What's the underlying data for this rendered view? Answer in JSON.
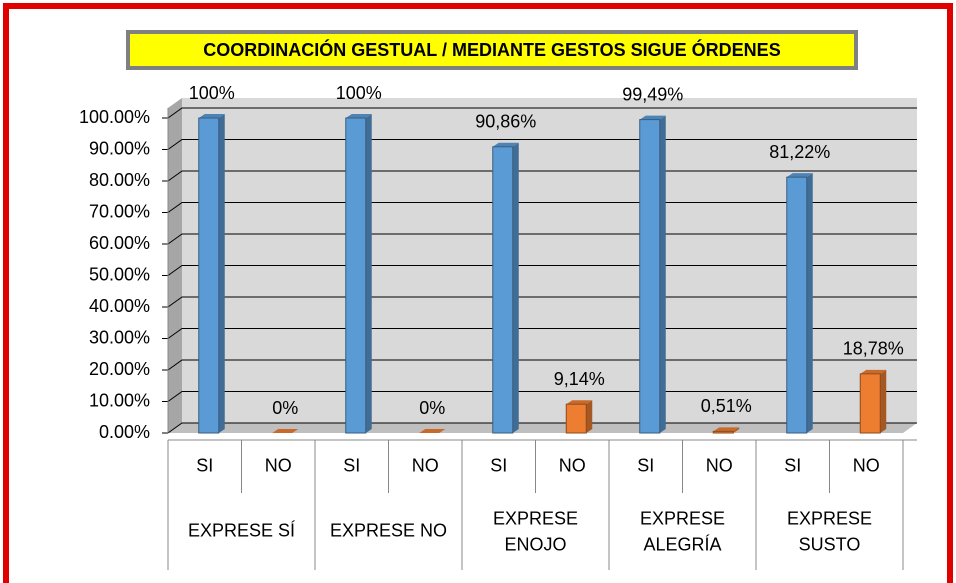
{
  "chart_data": {
    "type": "bar",
    "title": "COORDINACIÓN GESTUAL / MEDIANTE GESTOS SIGUE ÓRDENES",
    "categories": [
      "SI",
      "NO",
      "SI",
      "NO",
      "SI",
      "NO",
      "SI",
      "NO",
      "SI",
      "NO"
    ],
    "groups": [
      "EXPRESE SÍ",
      "EXPRESE NO",
      "EXPRESE ENOJO",
      "EXPRESE ALEGRÍA",
      "EXPRESE SUSTO"
    ],
    "values": [
      100,
      0,
      100,
      0,
      90.86,
      9.14,
      99.49,
      0.51,
      81.22,
      18.78
    ],
    "value_labels": [
      "100%",
      "0%",
      "100%",
      "0%",
      "90,86%",
      "9,14%",
      "99,49%",
      "0,51%",
      "81,22%",
      "18,78%"
    ],
    "colors": [
      "#5b9bd5",
      "#ed7d31",
      "#5b9bd5",
      "#ed7d31",
      "#5b9bd5",
      "#ed7d31",
      "#5b9bd5",
      "#ed7d31",
      "#5b9bd5",
      "#ed7d31"
    ],
    "ylim": [
      0,
      100
    ],
    "yticks": [
      {
        "value": 0,
        "label": "0.00%"
      },
      {
        "value": 10,
        "label": "10.00%"
      },
      {
        "value": 20,
        "label": "20.00%"
      },
      {
        "value": 30,
        "label": "30.00%"
      },
      {
        "value": 40,
        "label": "40.00%"
      },
      {
        "value": 50,
        "label": "50.00%"
      },
      {
        "value": 60,
        "label": "60.00%"
      },
      {
        "value": 70,
        "label": "70.00%"
      },
      {
        "value": 80,
        "label": "80.00%"
      },
      {
        "value": 90,
        "label": "90.00%"
      },
      {
        "value": 100,
        "label": "100.00%"
      }
    ],
    "grid": true
  }
}
